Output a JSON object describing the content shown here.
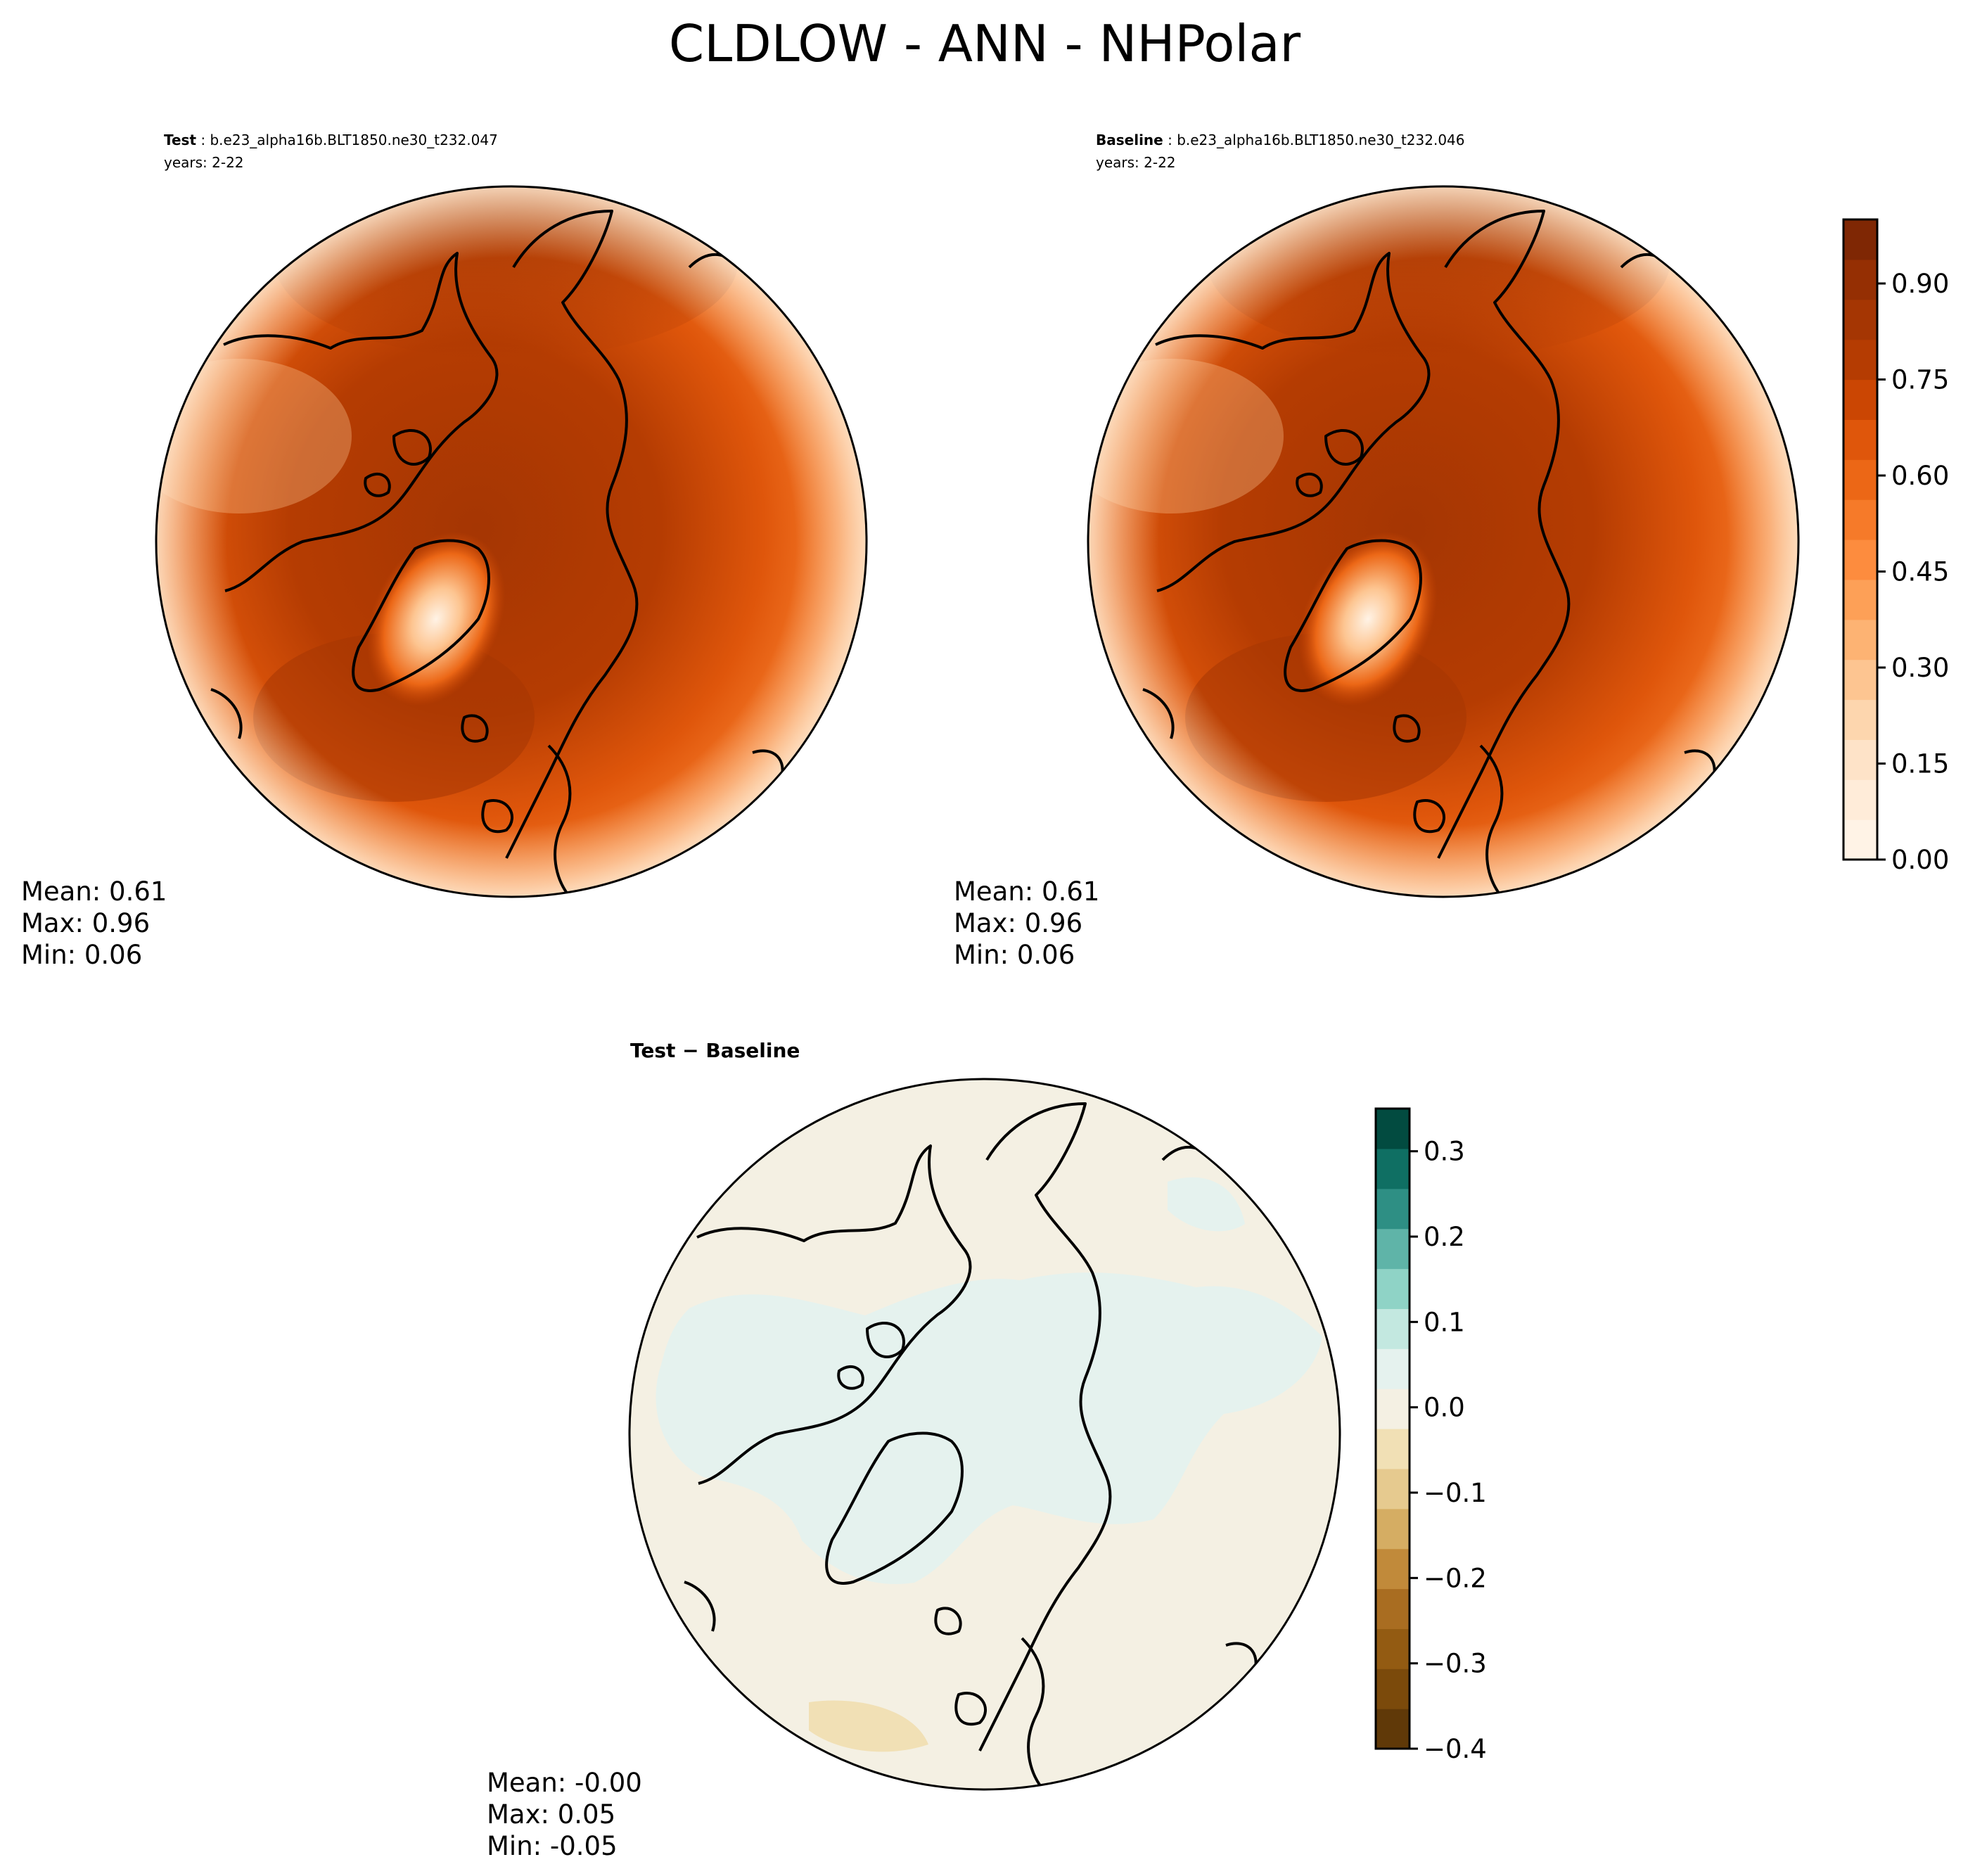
{
  "figure": {
    "title": "CLDLOW - ANN - NHPolar"
  },
  "panels": [
    {
      "label": "Test",
      "case": "b.e23_alpha16b.BLT1850.ne30_t232.047",
      "years": "years: 2-22",
      "stats": {
        "mean": "Mean:  0.61",
        "max": "Max:  0.96",
        "min": "Min:  0.06"
      },
      "colormap": "Oranges",
      "field_description_levels": [
        0.06,
        0.96
      ]
    },
    {
      "label": "Baseline",
      "case": "b.e23_alpha16b.BLT1850.ne30_t232.046",
      "years": "years: 2-22",
      "stats": {
        "mean": "Mean:  0.61",
        "max": "Max:  0.96",
        "min": "Min:  0.06"
      },
      "colormap": "Oranges"
    },
    {
      "title": "Test − Baseline",
      "stats": {
        "mean": "Mean: -0.00",
        "max": "Max:  0.05",
        "min": "Min: -0.05"
      },
      "colormap": "BrBG"
    }
  ],
  "colorbars": {
    "main": {
      "range": [
        0.0,
        1.0
      ],
      "ticks": [
        0.0,
        0.15,
        0.3,
        0.45,
        0.6,
        0.75,
        0.9
      ],
      "tick_labels": [
        "0.00",
        "0.15",
        "0.30",
        "0.45",
        "0.60",
        "0.75",
        "0.90"
      ],
      "colors": [
        "#fff3e6",
        "#ffecd9",
        "#fee3c8",
        "#fdd6ae",
        "#fdc591",
        "#fdb373",
        "#fda057",
        "#fd8c3e",
        "#f67a29",
        "#ec6716",
        "#df560b",
        "#cb4603",
        "#b53c02",
        "#a53603",
        "#952f03",
        "#7f2704"
      ]
    },
    "diff": {
      "range": [
        -0.4,
        0.35
      ],
      "ticks": [
        -0.4,
        -0.3,
        -0.2,
        -0.1,
        0.0,
        0.1,
        0.2,
        0.3
      ],
      "tick_labels": [
        "−0.4",
        "−0.3",
        "−0.2",
        "−0.1",
        "0.0",
        "0.1",
        "0.2",
        "0.3"
      ],
      "colors": [
        "#603908",
        "#7b4a0b",
        "#935b12",
        "#a96d21",
        "#c18a3a",
        "#d5ad63",
        "#e6ca8f",
        "#f1e0b5",
        "#f4f0e3",
        "#e5f2ee",
        "#c3e8e0",
        "#8fd3c6",
        "#5fb4a8",
        "#2e8f84",
        "#0f6f63",
        "#024b40"
      ]
    }
  }
}
